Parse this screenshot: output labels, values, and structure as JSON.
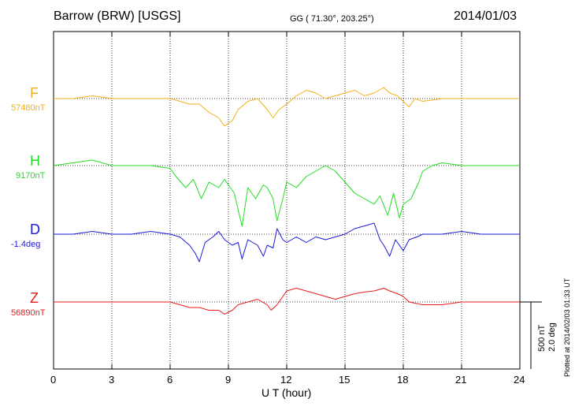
{
  "header": {
    "station": "Barrow (BRW)  [USGS]",
    "coords": "GG ( 71.30°, 203.25°)",
    "date": "2014/01/03"
  },
  "scale": {
    "line1": "500 nT",
    "line2": "2.0 deg"
  },
  "plotted": "Plotted at 2014/02/03 01:33 UT",
  "chart_data": {
    "type": "line",
    "xlabel": "U T (hour)",
    "xlim": [
      0,
      24
    ],
    "xticks": [
      "0",
      "3",
      "6",
      "9",
      "12",
      "15",
      "18",
      "21",
      "24"
    ],
    "grid": true,
    "series": [
      {
        "name": "F",
        "value_label": "57480nT",
        "color": "#f2b11c",
        "points": [
          [
            0,
            0
          ],
          [
            1,
            0
          ],
          [
            2,
            5
          ],
          [
            3,
            0
          ],
          [
            4,
            0
          ],
          [
            5,
            0
          ],
          [
            6,
            0
          ],
          [
            6.5,
            -5
          ],
          [
            7,
            -10
          ],
          [
            7.5,
            -10
          ],
          [
            8,
            -25
          ],
          [
            8.5,
            -35
          ],
          [
            8.8,
            -50
          ],
          [
            9.2,
            -40
          ],
          [
            9.5,
            -20
          ],
          [
            10,
            -5
          ],
          [
            10.5,
            0
          ],
          [
            11,
            -20
          ],
          [
            11.3,
            -35
          ],
          [
            11.6,
            -20
          ],
          [
            12,
            -10
          ],
          [
            12.5,
            5
          ],
          [
            13,
            15
          ],
          [
            13.5,
            10
          ],
          [
            14,
            0
          ],
          [
            14.5,
            5
          ],
          [
            15,
            10
          ],
          [
            15.5,
            15
          ],
          [
            16,
            5
          ],
          [
            16.5,
            10
          ],
          [
            17,
            20
          ],
          [
            17.3,
            10
          ],
          [
            17.7,
            5
          ],
          [
            18,
            -5
          ],
          [
            18.3,
            -15
          ],
          [
            18.6,
            0
          ],
          [
            19,
            -5
          ],
          [
            20,
            0
          ],
          [
            21,
            0
          ],
          [
            22,
            0
          ],
          [
            24,
            0
          ]
        ]
      },
      {
        "name": "H",
        "value_label": "9170nT",
        "color": "#22dd22",
        "points": [
          [
            0,
            0
          ],
          [
            1,
            5
          ],
          [
            2,
            10
          ],
          [
            3,
            0
          ],
          [
            4,
            0
          ],
          [
            5,
            0
          ],
          [
            6,
            -5
          ],
          [
            6.3,
            -20
          ],
          [
            6.8,
            -40
          ],
          [
            7.2,
            -25
          ],
          [
            7.6,
            -60
          ],
          [
            8,
            -30
          ],
          [
            8.5,
            -40
          ],
          [
            8.8,
            -25
          ],
          [
            9.3,
            -50
          ],
          [
            9.7,
            -110
          ],
          [
            10,
            -40
          ],
          [
            10.4,
            -60
          ],
          [
            10.8,
            -35
          ],
          [
            11,
            -40
          ],
          [
            11.3,
            -60
          ],
          [
            11.5,
            -100
          ],
          [
            11.8,
            -60
          ],
          [
            12,
            -30
          ],
          [
            12.5,
            -40
          ],
          [
            13,
            -20
          ],
          [
            13.5,
            -10
          ],
          [
            14,
            0
          ],
          [
            14.5,
            -10
          ],
          [
            15,
            -30
          ],
          [
            15.5,
            -50
          ],
          [
            16,
            -60
          ],
          [
            16.5,
            -70
          ],
          [
            16.8,
            -55
          ],
          [
            17.2,
            -90
          ],
          [
            17.5,
            -50
          ],
          [
            17.8,
            -95
          ],
          [
            18,
            -70
          ],
          [
            18.4,
            -60
          ],
          [
            18.8,
            -30
          ],
          [
            19,
            -10
          ],
          [
            19.5,
            0
          ],
          [
            20,
            5
          ],
          [
            21,
            0
          ],
          [
            22,
            0
          ],
          [
            24,
            0
          ]
        ]
      },
      {
        "name": "D",
        "value_label": "-1.4deg",
        "color": "#1a1adb",
        "points": [
          [
            0,
            0
          ],
          [
            1,
            0
          ],
          [
            2,
            5
          ],
          [
            3,
            0
          ],
          [
            4,
            0
          ],
          [
            5,
            5
          ],
          [
            6,
            0
          ],
          [
            6.5,
            -5
          ],
          [
            7,
            -20
          ],
          [
            7.3,
            -35
          ],
          [
            7.5,
            -50
          ],
          [
            7.8,
            -15
          ],
          [
            8.2,
            -5
          ],
          [
            8.5,
            5
          ],
          [
            8.8,
            -10
          ],
          [
            9.2,
            -20
          ],
          [
            9.5,
            -15
          ],
          [
            9.7,
            -45
          ],
          [
            10,
            -10
          ],
          [
            10.5,
            -20
          ],
          [
            10.8,
            -40
          ],
          [
            11,
            -20
          ],
          [
            11.3,
            -25
          ],
          [
            11.5,
            10
          ],
          [
            11.8,
            -10
          ],
          [
            12,
            -15
          ],
          [
            12.5,
            -5
          ],
          [
            13,
            -15
          ],
          [
            13.5,
            -5
          ],
          [
            14,
            -10
          ],
          [
            14.5,
            -5
          ],
          [
            15,
            0
          ],
          [
            15.5,
            10
          ],
          [
            16,
            15
          ],
          [
            16.5,
            20
          ],
          [
            16.8,
            -10
          ],
          [
            17,
            -20
          ],
          [
            17.3,
            -40
          ],
          [
            17.6,
            -10
          ],
          [
            18,
            -30
          ],
          [
            18.3,
            -10
          ],
          [
            18.7,
            -5
          ],
          [
            19,
            0
          ],
          [
            20,
            0
          ],
          [
            21,
            5
          ],
          [
            22,
            0
          ],
          [
            23,
            0
          ],
          [
            24,
            0
          ]
        ]
      },
      {
        "name": "Z",
        "value_label": "56890nT",
        "color": "#e81c1c",
        "points": [
          [
            0,
            0
          ],
          [
            1,
            0
          ],
          [
            2,
            0
          ],
          [
            3,
            0
          ],
          [
            4,
            0
          ],
          [
            5,
            0
          ],
          [
            6,
            0
          ],
          [
            6.5,
            -5
          ],
          [
            7,
            -10
          ],
          [
            7.5,
            -10
          ],
          [
            8,
            -15
          ],
          [
            8.5,
            -15
          ],
          [
            8.8,
            -22
          ],
          [
            9.2,
            -15
          ],
          [
            9.5,
            -5
          ],
          [
            10,
            0
          ],
          [
            10.5,
            5
          ],
          [
            11,
            -5
          ],
          [
            11.2,
            -15
          ],
          [
            11.5,
            -5
          ],
          [
            12,
            20
          ],
          [
            12.5,
            25
          ],
          [
            13,
            20
          ],
          [
            13.5,
            15
          ],
          [
            14,
            10
          ],
          [
            14.5,
            5
          ],
          [
            15,
            10
          ],
          [
            15.5,
            15
          ],
          [
            16,
            18
          ],
          [
            16.5,
            20
          ],
          [
            17,
            25
          ],
          [
            17.3,
            20
          ],
          [
            17.7,
            15
          ],
          [
            18,
            10
          ],
          [
            18.3,
            0
          ],
          [
            19,
            -5
          ],
          [
            20,
            -5
          ],
          [
            21,
            0
          ],
          [
            22,
            0
          ],
          [
            24,
            0
          ]
        ]
      }
    ]
  }
}
